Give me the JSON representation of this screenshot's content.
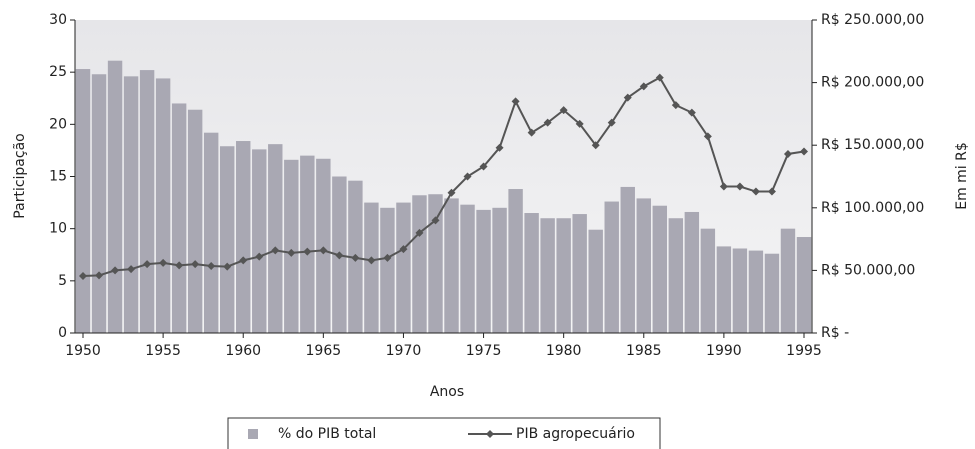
{
  "chart_data": {
    "type": "bar_line",
    "x_label": "Anos",
    "y_label": "Participação",
    "y2_label": "Em mi R$",
    "x": [
      1950,
      1951,
      1952,
      1953,
      1954,
      1955,
      1956,
      1957,
      1958,
      1959,
      1960,
      1961,
      1962,
      1963,
      1964,
      1965,
      1966,
      1967,
      1968,
      1969,
      1970,
      1971,
      1972,
      1973,
      1974,
      1975,
      1976,
      1977,
      1978,
      1979,
      1980,
      1981,
      1982,
      1983,
      1984,
      1985,
      1986,
      1987,
      1988,
      1989,
      1990,
      1991,
      1992,
      1993,
      1994,
      1995
    ],
    "series": [
      {
        "name": "% do PIB total",
        "color": "#a9a8b3",
        "type": "bar",
        "values": [
          25.3,
          24.8,
          26.1,
          24.6,
          25.2,
          24.4,
          22.0,
          21.4,
          19.2,
          17.9,
          18.4,
          17.6,
          18.1,
          16.6,
          17.0,
          16.7,
          15.0,
          14.6,
          12.5,
          12.0,
          12.5,
          13.2,
          13.3,
          12.9,
          12.3,
          11.8,
          12.0,
          13.8,
          11.5,
          11.0,
          11.0,
          11.4,
          9.9,
          12.6,
          14.0,
          12.9,
          12.2,
          11.0,
          11.6,
          10.0,
          8.3,
          8.1,
          7.9,
          7.6,
          10.0,
          9.2
        ]
      },
      {
        "name": "PIB agropecuário",
        "color": "#555555",
        "type": "line",
        "axis": "y2",
        "values": [
          45500,
          46000,
          50000,
          51000,
          55000,
          56000,
          54000,
          55000,
          53500,
          53000,
          58000,
          61000,
          66000,
          64000,
          65000,
          66000,
          62000,
          60000,
          58000,
          60000,
          67000,
          80000,
          90000,
          112000,
          125000,
          133000,
          148000,
          185000,
          160000,
          168000,
          178000,
          167000,
          150000,
          168000,
          188000,
          197000,
          204000,
          182000,
          176000,
          157000,
          117000,
          117000,
          113000,
          113000,
          143000,
          145000
        ]
      }
    ],
    "xlim": [
      1949.5,
      1995.5
    ],
    "xticks": [
      1950,
      1955,
      1960,
      1965,
      1970,
      1975,
      1980,
      1985,
      1990,
      1995
    ],
    "ylim": [
      0,
      30
    ],
    "yticks": [
      0,
      5,
      10,
      15,
      20,
      25,
      30
    ],
    "y2lim": [
      0,
      250000
    ],
    "y2ticks": [
      {
        "value": 0,
        "label": "R$ -"
      },
      {
        "value": 50000,
        "label": "R$ 50.000,00"
      },
      {
        "value": 100000,
        "label": "R$ 100.000,00"
      },
      {
        "value": 150000,
        "label": "R$ 150.000,00"
      },
      {
        "value": 200000,
        "label": "R$ 200.000,00"
      },
      {
        "value": 250000,
        "label": "R$ 250.000,00"
      }
    ],
    "legend": "bottom"
  }
}
